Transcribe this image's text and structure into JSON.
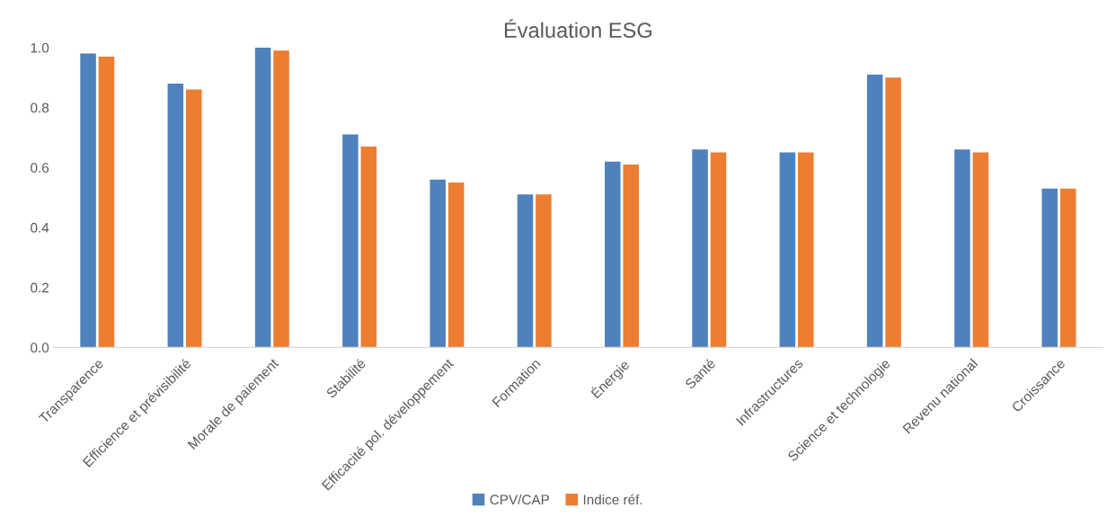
{
  "chart_data": {
    "type": "bar",
    "title": "Évaluation ESG",
    "categories": [
      "Transparence",
      "Efficience et prévisibilité",
      "Morale de paiement",
      "Stabilité",
      "Efficacité pol. développement",
      "Formation",
      "Énergie",
      "Santé",
      "Infrastructures",
      "Science et technologie",
      "Revenu national",
      "Croissance"
    ],
    "series": [
      {
        "name": "CPV/CAP",
        "color": "#4f81bd",
        "values": [
          0.98,
          0.88,
          1.0,
          0.71,
          0.56,
          0.51,
          0.62,
          0.66,
          0.65,
          0.91,
          0.66,
          0.53
        ]
      },
      {
        "name": "Indice réf.",
        "color": "#ed7d31",
        "values": [
          0.97,
          0.86,
          0.99,
          0.67,
          0.55,
          0.51,
          0.61,
          0.65,
          0.65,
          0.9,
          0.65,
          0.53
        ]
      }
    ],
    "ylim": [
      0,
      1.0
    ],
    "yticks": [
      {
        "value": 0,
        "label": "0.0"
      },
      {
        "value": 0.2,
        "label": "0.2"
      },
      {
        "value": 0.4,
        "label": "0.4"
      },
      {
        "value": 0.6,
        "label": "0.6"
      },
      {
        "value": 0.8,
        "label": "0.8"
      },
      {
        "value": 1.0,
        "label": "1.0"
      }
    ],
    "grid": false,
    "legend": "bottom"
  }
}
